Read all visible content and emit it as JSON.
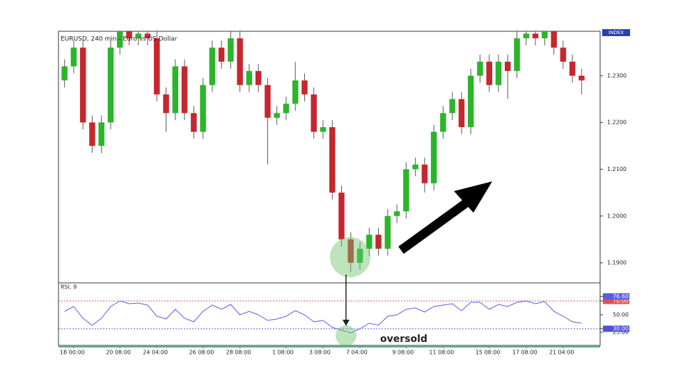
{
  "chart_data": [
    {
      "type": "candlestick",
      "title": "EURUSD, 240 min - Euro vs US Dollar",
      "axis_label": "INDEX",
      "categories": [
        null,
        "18 00:00",
        null,
        null,
        null,
        null,
        "20 08:00",
        null,
        null,
        null,
        "24 04:00",
        null,
        null,
        null,
        null,
        "26 08:00",
        null,
        null,
        null,
        "28 08:00",
        null,
        null,
        null,
        null,
        "1 08:00",
        null,
        null,
        null,
        "3 08:00",
        null,
        null,
        null,
        "7 04:00",
        null,
        null,
        null,
        null,
        "9 08:00",
        null,
        null,
        null,
        "11 08:00",
        null,
        null,
        null,
        null,
        "15 08:00",
        null,
        null,
        null,
        "17 08:00",
        null,
        null,
        null,
        "21 04:00",
        null,
        null
      ],
      "open": [
        1.229,
        1.232,
        1.236,
        1.22,
        1.215,
        1.22,
        1.236,
        1.24,
        1.238,
        1.239,
        1.238,
        1.226,
        1.222,
        1.232,
        1.222,
        1.218,
        1.228,
        1.236,
        1.233,
        1.238,
        1.228,
        1.231,
        1.228,
        1.221,
        1.222,
        1.224,
        1.229,
        1.226,
        1.218,
        1.219,
        1.205,
        1.195,
        1.19,
        1.193,
        1.196,
        1.193,
        1.2,
        1.201,
        1.21,
        1.211,
        1.207,
        1.218,
        1.222,
        1.225,
        1.219,
        1.23,
        1.233,
        1.228,
        1.233,
        1.231,
        1.238,
        1.239,
        1.238,
        1.24,
        1.236,
        1.233,
        1.23
      ],
      "high": [
        1.2335,
        1.2375,
        1.2375,
        1.2215,
        1.2215,
        1.2375,
        1.2415,
        1.2415,
        1.2405,
        1.2405,
        1.2395,
        1.2275,
        1.2335,
        1.2335,
        1.2235,
        1.2295,
        1.2375,
        1.2375,
        1.24,
        1.2395,
        1.2325,
        1.2325,
        1.2295,
        1.2235,
        1.2255,
        1.233,
        1.2305,
        1.2275,
        1.2205,
        1.2205,
        1.2065,
        1.1965,
        1.1945,
        1.1975,
        1.1975,
        1.2015,
        1.2025,
        1.2115,
        1.2125,
        1.2125,
        1.2195,
        1.2235,
        1.2265,
        1.2265,
        1.2315,
        1.2345,
        1.2345,
        1.2345,
        1.2345,
        1.2395,
        1.2405,
        1.2405,
        1.2415,
        1.2415,
        1.2375,
        1.2345,
        1.2315
      ],
      "low": [
        1.2275,
        1.2305,
        1.2185,
        1.2135,
        1.2135,
        1.2185,
        1.2345,
        1.2365,
        1.2365,
        1.2365,
        1.2245,
        1.218,
        1.2205,
        1.2205,
        1.2165,
        1.2165,
        1.2265,
        1.2315,
        1.2315,
        1.2265,
        1.2265,
        1.2265,
        1.211,
        1.2195,
        1.2205,
        1.2225,
        1.2245,
        1.2165,
        1.2165,
        1.2035,
        1.1935,
        1.188,
        1.1885,
        1.1915,
        1.1915,
        1.1915,
        1.1985,
        1.1995,
        1.2085,
        1.205,
        1.2055,
        1.2165,
        1.2205,
        1.2175,
        1.2175,
        1.2285,
        1.2265,
        1.2265,
        1.225,
        1.2295,
        1.2365,
        1.2365,
        1.2365,
        1.2345,
        1.2315,
        1.2285,
        1.226
      ],
      "close": [
        1.232,
        1.236,
        1.22,
        1.215,
        1.22,
        1.236,
        1.24,
        1.238,
        1.239,
        1.238,
        1.226,
        1.222,
        1.232,
        1.222,
        1.218,
        1.228,
        1.236,
        1.233,
        1.238,
        1.228,
        1.231,
        1.228,
        1.221,
        1.222,
        1.224,
        1.229,
        1.226,
        1.218,
        1.219,
        1.205,
        1.195,
        1.19,
        1.193,
        1.196,
        1.193,
        1.2,
        1.201,
        1.21,
        1.211,
        1.207,
        1.218,
        1.222,
        1.225,
        1.219,
        1.23,
        1.233,
        1.228,
        1.233,
        1.231,
        1.238,
        1.239,
        1.238,
        1.24,
        1.236,
        1.233,
        1.23,
        1.229
      ],
      "up_color": "#2bb52b",
      "down_color": "#c4282e",
      "ylim": [
        1.1857,
        1.2395
      ],
      "yticks": [
        {
          "value": 1.19,
          "label": "1.1900"
        },
        {
          "value": 1.2,
          "label": "1.2000"
        },
        {
          "value": 1.21,
          "label": "1.2100"
        },
        {
          "value": 1.22,
          "label": "1.2200"
        },
        {
          "value": 1.23,
          "label": "1.2300"
        }
      ]
    },
    {
      "type": "line",
      "title": "RSI, 9",
      "color": "#5a5ae6",
      "values": [
        55,
        62,
        45,
        35,
        45,
        62,
        70,
        66,
        67,
        64,
        48,
        44,
        58,
        45,
        40,
        55,
        64,
        58,
        65,
        50,
        55,
        50,
        42,
        44,
        48,
        56,
        50,
        40,
        42,
        32,
        28,
        24,
        30,
        38,
        35,
        48,
        50,
        58,
        60,
        54,
        62,
        64,
        66,
        56,
        68,
        68,
        58,
        65,
        62,
        68,
        70,
        66,
        69,
        55,
        48,
        40,
        38
      ],
      "ylim": [
        6,
        96
      ],
      "yticks": [
        {
          "value": 25,
          "label": "25.00"
        },
        {
          "value": 30,
          "label": "30.00"
        },
        {
          "value": 50,
          "label": "50.00"
        },
        {
          "value": 70,
          "label": "70.00"
        },
        {
          "value": 76.6,
          "label": "76.60"
        }
      ],
      "levels": [
        {
          "value": 70,
          "color": "#e05050"
        },
        {
          "value": 30,
          "color": "#5050e0"
        }
      ],
      "annotation": "oversold"
    }
  ]
}
